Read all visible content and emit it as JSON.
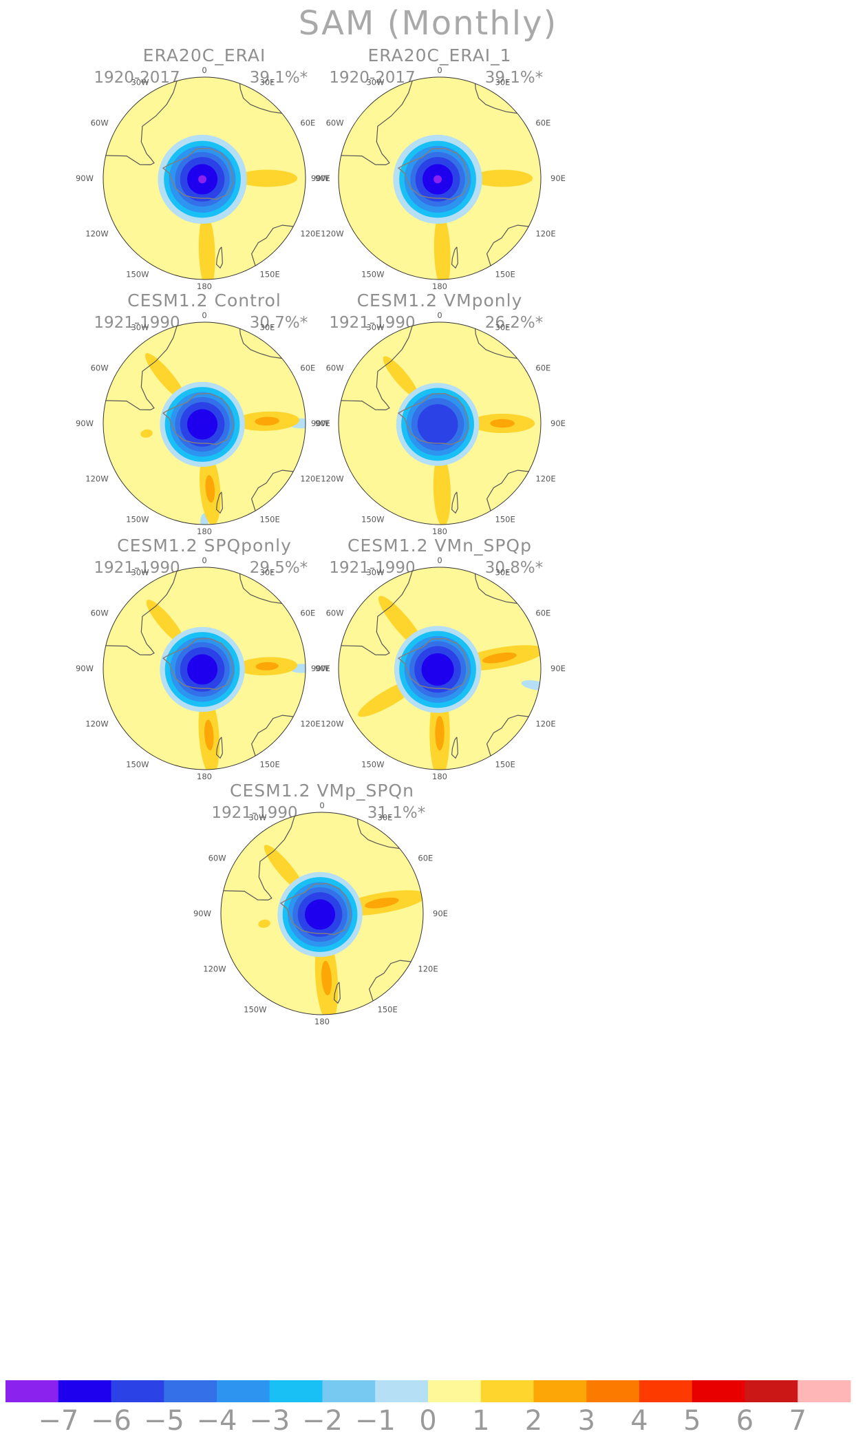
{
  "title": "SAM (Monthly)",
  "panels": [
    {
      "name": "ERA20C_ERAI",
      "period": "1920-2017",
      "variance": "39.1%*",
      "levels": {
        "n7": 0.04,
        "n6": 0.15,
        "n5": 0.22,
        "n4": 0.27,
        "n3": 0.33,
        "n2": 0.38,
        "n1": 0.44
      },
      "pos": [
        {
          "lon": 90,
          "r": 0.62,
          "ls": 0.3,
          "lt": 0.085,
          "lv": 1
        },
        {
          "lon": 178,
          "r": 0.73,
          "ls": 0.38,
          "lt": 0.08,
          "lv": 1
        }
      ],
      "blue_extra": []
    },
    {
      "name": "ERA20C_ERAI_1",
      "period": "1920-2017",
      "variance": "39.1%*",
      "levels": {
        "n7": 0.04,
        "n6": 0.15,
        "n5": 0.22,
        "n4": 0.27,
        "n3": 0.33,
        "n2": 0.38,
        "n1": 0.44
      },
      "pos": [
        {
          "lon": 90,
          "r": 0.62,
          "ls": 0.3,
          "lt": 0.085,
          "lv": 1
        },
        {
          "lon": 178,
          "r": 0.73,
          "ls": 0.38,
          "lt": 0.08,
          "lv": 1
        }
      ],
      "blue_extra": []
    },
    {
      "name": "CESM1.2 Control",
      "period": "1921-1990",
      "variance": "30.7%*",
      "levels": {
        "n7": 0,
        "n6": 0.15,
        "n5": 0.22,
        "n4": 0.27,
        "n3": 0.32,
        "n2": 0.37,
        "n1": 0.42
      },
      "pos": [
        {
          "lon": 88,
          "r": 0.62,
          "ls": 0.32,
          "lt": 0.095,
          "lv": 2
        },
        {
          "lon": 175,
          "r": 0.65,
          "ls": 0.36,
          "lt": 0.1,
          "lv": 2
        },
        {
          "lon": -40,
          "r": 0.6,
          "ls": 0.3,
          "lt": 0.07,
          "lv": 1
        },
        {
          "lon": -100,
          "r": 0.58,
          "ls": 0.06,
          "lt": 0.04,
          "lv": 1
        }
      ],
      "blue_extra": [
        {
          "lon": 90,
          "r": 0.96,
          "ls": 0.14,
          "lt": 0.05
        },
        {
          "lon": 180,
          "r": 0.97,
          "ls": 0.08,
          "lt": 0.04
        }
      ]
    },
    {
      "name": "CESM1.2 VMponly",
      "period": "1921-1990",
      "variance": "26.2%*",
      "levels": {
        "n7": 0,
        "n6": 0,
        "n5": 0.2,
        "n4": 0.26,
        "n3": 0.31,
        "n2": 0.36,
        "n1": 0.41
      },
      "pos": [
        {
          "lon": 90,
          "r": 0.62,
          "ls": 0.32,
          "lt": 0.095,
          "lv": 2
        },
        {
          "lon": 178,
          "r": 0.66,
          "ls": 0.36,
          "lt": 0.085,
          "lv": 1
        },
        {
          "lon": -40,
          "r": 0.6,
          "ls": 0.26,
          "lt": 0.065,
          "lv": 1
        }
      ],
      "blue_extra": []
    },
    {
      "name": "CESM1.2 SPQponly",
      "period": "1921-1990",
      "variance": "29.5%*",
      "levels": {
        "n7": 0,
        "n6": 0.15,
        "n5": 0.22,
        "n4": 0.27,
        "n3": 0.32,
        "n2": 0.37,
        "n1": 0.42
      },
      "pos": [
        {
          "lon": 88,
          "r": 0.62,
          "ls": 0.3,
          "lt": 0.09,
          "lv": 2
        },
        {
          "lon": 176,
          "r": 0.66,
          "ls": 0.4,
          "lt": 0.1,
          "lv": 2
        },
        {
          "lon": -40,
          "r": 0.6,
          "ls": 0.28,
          "lt": 0.07,
          "lv": 1
        }
      ],
      "blue_extra": [
        {
          "lon": 90,
          "r": 0.96,
          "ls": 0.12,
          "lt": 0.045
        }
      ]
    },
    {
      "name": "CESM1.2 VMn_SPQp",
      "period": "1921-1990",
      "variance": "30.8%*",
      "levels": {
        "n7": 0,
        "n6": 0.16,
        "n5": 0.23,
        "n4": 0.28,
        "n3": 0.33,
        "n2": 0.38,
        "n1": 0.43
      },
      "pos": [
        {
          "lon": 80,
          "r": 0.6,
          "ls": 0.45,
          "lt": 0.1,
          "lv": 2
        },
        {
          "lon": 180,
          "r": 0.64,
          "ls": 0.45,
          "lt": 0.1,
          "lv": 2
        },
        {
          "lon": -40,
          "r": 0.58,
          "ls": 0.35,
          "lt": 0.08,
          "lv": 1
        },
        {
          "lon": -120,
          "r": 0.58,
          "ls": 0.35,
          "lt": 0.08,
          "lv": 1
        }
      ],
      "blue_extra": [
        {
          "lon": 100,
          "r": 0.96,
          "ls": 0.14,
          "lt": 0.045
        }
      ]
    },
    {
      "name": "CESM1.2 VMp_SPQn",
      "period": "1921-1990",
      "variance": "31.1%*",
      "levels": {
        "n7": 0,
        "n6": 0.15,
        "n5": 0.22,
        "n4": 0.27,
        "n3": 0.32,
        "n2": 0.37,
        "n1": 0.42
      },
      "pos": [
        {
          "lon": 80,
          "r": 0.6,
          "ls": 0.45,
          "lt": 0.1,
          "lv": 2
        },
        {
          "lon": 176,
          "r": 0.64,
          "ls": 0.45,
          "lt": 0.11,
          "lv": 2
        },
        {
          "lon": -40,
          "r": 0.58,
          "ls": 0.3,
          "lt": 0.07,
          "lv": 1
        },
        {
          "lon": -100,
          "r": 0.58,
          "ls": 0.06,
          "lt": 0.04,
          "lv": 1
        }
      ],
      "blue_extra": []
    }
  ],
  "lon_labels": [
    "0",
    "30E",
    "60E",
    "90E",
    "120E",
    "150E",
    "180",
    "150W",
    "120W",
    "90W",
    "60W",
    "30W"
  ],
  "colorbar": {
    "colors": [
      "#8b22ee",
      "#1e00ee",
      "#2a42e6",
      "#3470e8",
      "#2d95f0",
      "#19c0f5",
      "#77c9f2",
      "#b4dff5",
      "#fff898",
      "#fed52c",
      "#fda608",
      "#fd7a00",
      "#fd3a00",
      "#e80000",
      "#cc1717",
      "#ffb6b6"
    ],
    "labels": [
      "−7",
      "−6",
      "−5",
      "−4",
      "−3",
      "−2",
      "−1",
      "0",
      "1",
      "2",
      "3",
      "4",
      "5",
      "6",
      "7"
    ]
  },
  "palette": {
    "land_coast": "#555555",
    "antarctic_coast": "#7f7f7f",
    "neutral": "#fff898"
  }
}
